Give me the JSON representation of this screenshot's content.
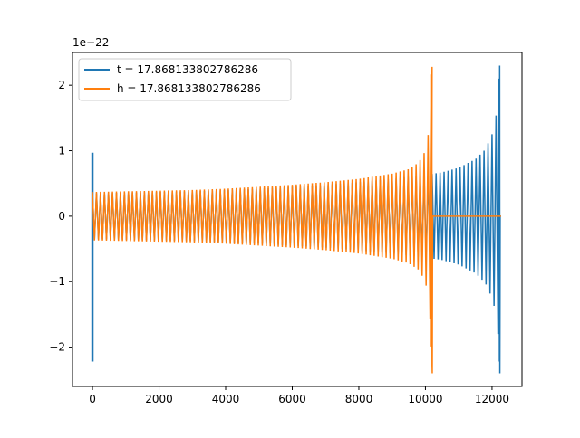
{
  "chart_data": {
    "type": "line",
    "title": "",
    "xlabel": "",
    "ylabel": "",
    "y_offset_label": "1e−22",
    "xlim": [
      -600,
      12900
    ],
    "ylim": [
      -2.6,
      2.5
    ],
    "grid": false,
    "legend_position": "top-left",
    "x_ticks": [
      {
        "value": 0,
        "label": "0"
      },
      {
        "value": 2000,
        "label": "2000"
      },
      {
        "value": 4000,
        "label": "4000"
      },
      {
        "value": 6000,
        "label": "6000"
      },
      {
        "value": 8000,
        "label": "8000"
      },
      {
        "value": 10000,
        "label": "10000"
      },
      {
        "value": 12000,
        "label": "12000"
      }
    ],
    "y_ticks": [
      {
        "value": -2,
        "label": "−2"
      },
      {
        "value": -1,
        "label": "−1"
      },
      {
        "value": 0,
        "label": "0"
      },
      {
        "value": 1,
        "label": "1"
      },
      {
        "value": 2,
        "label": "2"
      }
    ],
    "series": [
      {
        "name": "t = 17.868133802786286",
        "color": "#1f77b4",
        "x_end": 12270,
        "merger_x": 12230,
        "envelope": [
          [
            0,
            0.35
          ],
          [
            1000,
            0.36
          ],
          [
            2000,
            0.37
          ],
          [
            3000,
            0.38
          ],
          [
            4000,
            0.4
          ],
          [
            5000,
            0.42
          ],
          [
            6000,
            0.45
          ],
          [
            7000,
            0.48
          ],
          [
            8000,
            0.52
          ],
          [
            9000,
            0.57
          ],
          [
            10000,
            0.63
          ],
          [
            10500,
            0.67
          ],
          [
            11000,
            0.74
          ],
          [
            11500,
            0.87
          ],
          [
            11800,
            1.02
          ],
          [
            12000,
            1.25
          ],
          [
            12100,
            1.45
          ],
          [
            12180,
            1.8
          ],
          [
            12230,
            2.3
          ]
        ],
        "glitch_x": 0,
        "glitch_range": [
          -2.22,
          0.97
        ]
      },
      {
        "name": "h = 17.868133802786286",
        "color": "#ff7f0e",
        "x_end": 12270,
        "merger_x": 10200,
        "envelope": [
          [
            0,
            0.37
          ],
          [
            1000,
            0.38
          ],
          [
            2000,
            0.39
          ],
          [
            3000,
            0.4
          ],
          [
            4000,
            0.42
          ],
          [
            5000,
            0.45
          ],
          [
            6000,
            0.48
          ],
          [
            7000,
            0.52
          ],
          [
            8000,
            0.57
          ],
          [
            9000,
            0.65
          ],
          [
            9500,
            0.72
          ],
          [
            9800,
            0.82
          ],
          [
            10000,
            1.0
          ],
          [
            10100,
            1.3
          ],
          [
            10160,
            1.7
          ],
          [
            10200,
            2.28
          ]
        ]
      }
    ]
  }
}
